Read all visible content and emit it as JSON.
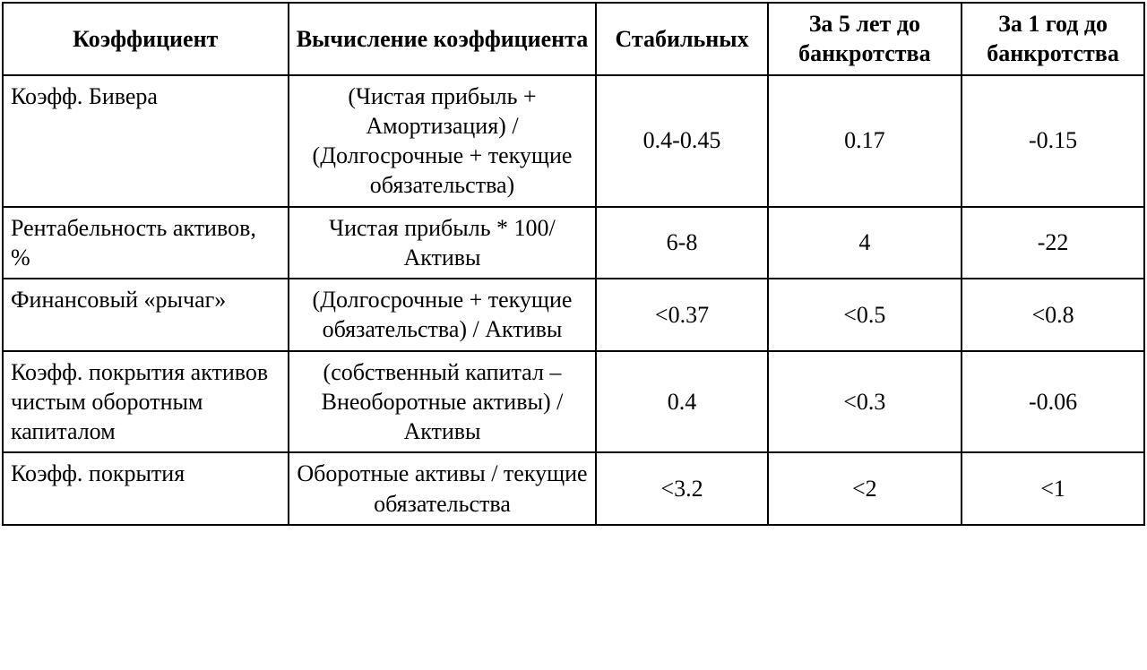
{
  "table": {
    "columns": [
      "Коэффициент",
      "Вычисление коэффициента",
      "Стабильных",
      "За 5 лет до банкротства",
      "За 1 год до банкротства"
    ],
    "rows": [
      {
        "coef": "Коэфф. Бивера",
        "calc": "(Чистая прибыль + Амортизация) / (Долгосрочные + текущие обязательства)",
        "stable": "0.4-0.45",
        "y5": "0.17",
        "y1": "-0.15"
      },
      {
        "coef": "Рентабельность активов, %",
        "calc": "Чистая прибыль * 100/ Активы",
        "stable": "6-8",
        "y5": "4",
        "y1": "-22"
      },
      {
        "coef": "Финансовый «рычаг»",
        "calc": "(Долгосрочные + текущие обязательства) / Активы",
        "stable": "<0.37",
        "y5": "<0.5",
        "y1": "<0.8"
      },
      {
        "coef": "Коэфф. покрытия активов чистым оборотным капиталом",
        "calc": "(собственный капитал – Внеоборотные активы) / Активы",
        "stable": "0.4",
        "y5": "<0.3",
        "y1": "-0.06"
      },
      {
        "coef": "Коэфф. покрытия",
        "calc": "Оборотные активы / текущие обязательства",
        "stable": "<3.2",
        "y5": "<2",
        "y1": "<1"
      }
    ],
    "border_color": "#000000",
    "background_color": "#ffffff",
    "font_family": "Times New Roman",
    "base_fontsize": 26,
    "header_bold": true,
    "col_widths_pct": [
      25,
      27,
      15,
      17,
      16
    ],
    "alignments": {
      "header": "center",
      "coef": "left",
      "calc": "center",
      "values": "center"
    }
  }
}
